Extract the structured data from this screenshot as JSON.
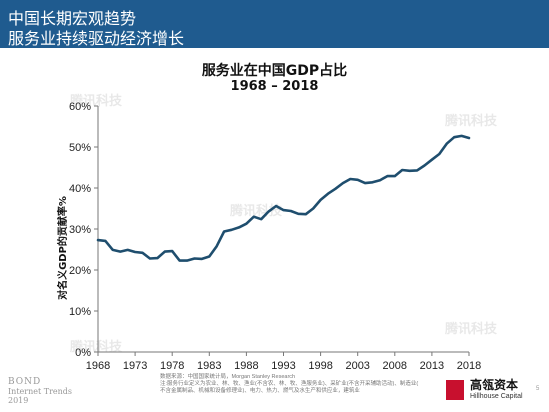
{
  "header": {
    "title_line1": "中国长期宏观趋势",
    "title_line2": "服务业持续驱动经济增长",
    "bg_color": "#1f5b8f"
  },
  "chart_data": {
    "type": "line",
    "title": "服务业在中国GDP占比",
    "subtitle": "1968 – 2018",
    "xlabel": "",
    "ylabel": "对名义GDP的贡献率%",
    "xlim": [
      1968,
      2018
    ],
    "ylim": [
      0,
      60
    ],
    "xticks": [
      1968,
      1973,
      1978,
      1983,
      1988,
      1993,
      1998,
      2003,
      2008,
      2013,
      2018
    ],
    "yticks": [
      "0%",
      "10%",
      "20%",
      "30%",
      "40%",
      "50%",
      "60%"
    ],
    "grid": false,
    "line_color": "#1f4e6e",
    "series": [
      {
        "x": [
          1968,
          1969,
          1970,
          1971,
          1972,
          1973,
          1974,
          1975,
          1976,
          1977,
          1978,
          1979,
          1980,
          1981,
          1982,
          1983,
          1984,
          1985,
          1986,
          1987,
          1988,
          1989,
          1990,
          1991,
          1992,
          1993,
          1994,
          1995,
          1996,
          1997,
          1998,
          1999,
          2000,
          2001,
          2002,
          2003,
          2004,
          2005,
          2006,
          2007,
          2008,
          2009,
          2010,
          2011,
          2012,
          2013,
          2014,
          2015,
          2016,
          2017,
          2018
        ],
        "values": [
          27.3,
          27.1,
          24.9,
          24.5,
          24.9,
          24.4,
          24.2,
          22.8,
          22.9,
          24.5,
          24.6,
          22.3,
          22.3,
          22.8,
          22.7,
          23.3,
          25.8,
          29.4,
          29.8,
          30.4,
          31.3,
          33.0,
          32.4,
          34.3,
          35.6,
          34.6,
          34.4,
          33.7,
          33.6,
          35.0,
          37.1,
          38.6,
          39.8,
          41.2,
          42.2,
          42.0,
          41.2,
          41.4,
          41.9,
          42.9,
          42.9,
          44.4,
          44.2,
          44.3,
          45.5,
          46.9,
          48.3,
          50.8,
          52.4,
          52.7,
          52.2
        ]
      }
    ]
  },
  "footer": {
    "bond_label": "BOND",
    "bond_sub1": "Internet Trends",
    "bond_sub2": "2019",
    "source_line1": "数据来源：中国国家统计局，Morgan Stanley Research",
    "source_line2": "注:服务行业定义为农业、林、牧、渔业(不含农、林、牧、渔服务业)、采矿业(不含开采辅助活动)、制造业(",
    "source_line3": "不含金属制品、机械和设备修理业)、电力、热力、燃气及水生产和供应业，建筑业",
    "company_name": "高瓴资本",
    "company_en": "Hillhouse Capital",
    "page_number": "5",
    "logo_color": "#c8102e"
  },
  "watermark": {
    "text": "腾讯科技"
  }
}
